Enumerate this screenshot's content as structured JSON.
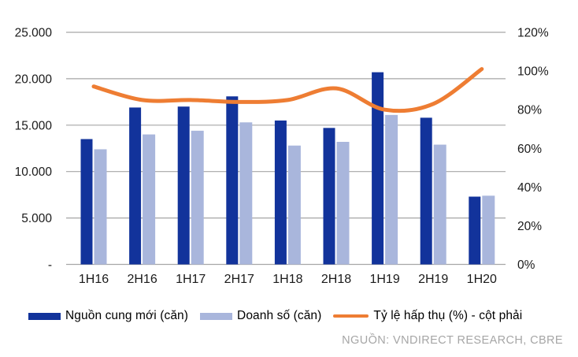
{
  "chart_data": {
    "type": "bar",
    "subtype": "combo-bar-line",
    "title": "",
    "categories": [
      "1H16",
      "2H16",
      "1H17",
      "2H17",
      "1H18",
      "2H18",
      "1H19",
      "2H19",
      "1H20"
    ],
    "series": [
      {
        "name": "Nguồn cung mới (căn)",
        "type": "bar",
        "axis": "left",
        "color": "#12339B",
        "values": [
          13500,
          16900,
          17000,
          18100,
          15500,
          14700,
          20700,
          15800,
          7300
        ]
      },
      {
        "name": "Doanh số (căn)",
        "type": "bar",
        "axis": "left",
        "color": "#A9B6DC",
        "values": [
          12400,
          14000,
          14400,
          15300,
          12800,
          13200,
          16100,
          12900,
          7400
        ]
      },
      {
        "name": "Tỷ lệ hấp thụ (%) - cột phải",
        "type": "line",
        "axis": "right",
        "color": "#EE7D33",
        "unit": "%",
        "values": [
          92,
          85,
          85,
          84,
          85,
          91,
          80,
          83,
          101
        ]
      }
    ],
    "left_axis": {
      "tick_labels": [
        "25.000",
        "20.000",
        "15.000",
        "10.000",
        "5.000",
        "-"
      ],
      "tick_values": [
        25000,
        20000,
        15000,
        10000,
        5000,
        0
      ],
      "min": 0,
      "max": 25000
    },
    "right_axis": {
      "tick_labels": [
        "120%",
        "100%",
        "80%",
        "60%",
        "40%",
        "20%",
        "0%"
      ],
      "tick_values": [
        120,
        100,
        80,
        60,
        40,
        20,
        0
      ],
      "min": 0,
      "max": 120
    },
    "grid": true,
    "legend_position": "bottom"
  },
  "source": {
    "text": "NGUỒN: VNDIRECT RESEARCH, CBRE"
  },
  "colors": {
    "bar_dark": "#12339B",
    "bar_light": "#A9B6DC",
    "line_orange": "#EE7D33",
    "gridline": "#A6A6A6",
    "tick_text": "#1A1A1A",
    "source_text": "#A6A6A6"
  }
}
